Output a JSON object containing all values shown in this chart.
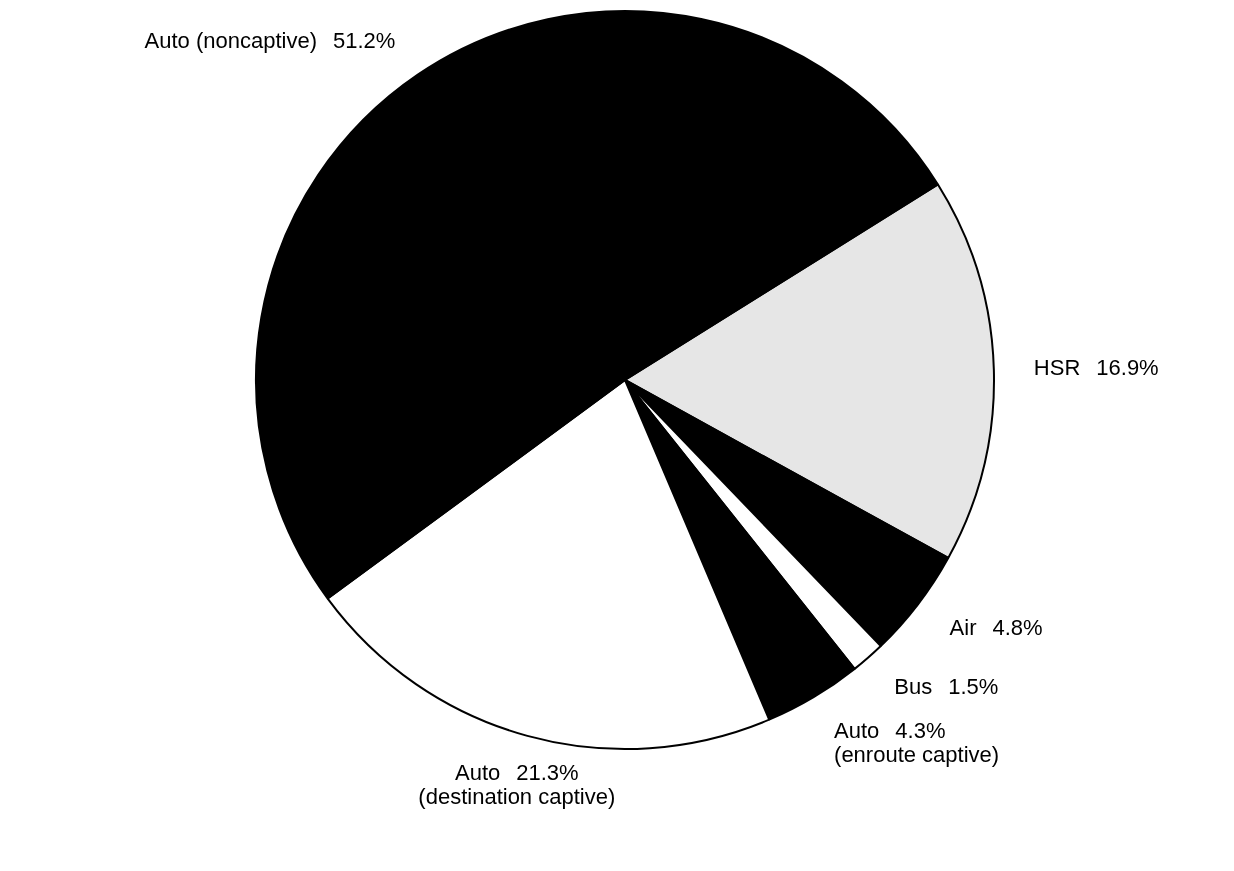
{
  "chart_data": {
    "type": "pie",
    "categories": [
      "HSR",
      "Air",
      "Bus",
      "Auto\n(enroute captive)",
      "Auto\n(destination captive)",
      "Auto (noncaptive)"
    ],
    "values": [
      16.9,
      4.8,
      1.5,
      4.3,
      21.3,
      51.2
    ],
    "value_labels": [
      "16.9%",
      "4.8%",
      "1.5%",
      "4.3%",
      "21.3%",
      "51.2%"
    ],
    "colors": [
      "#e6e6e6",
      "#000000",
      "#ffffff",
      "#000000",
      "#ffffff",
      "#000000"
    ],
    "legend": false
  }
}
